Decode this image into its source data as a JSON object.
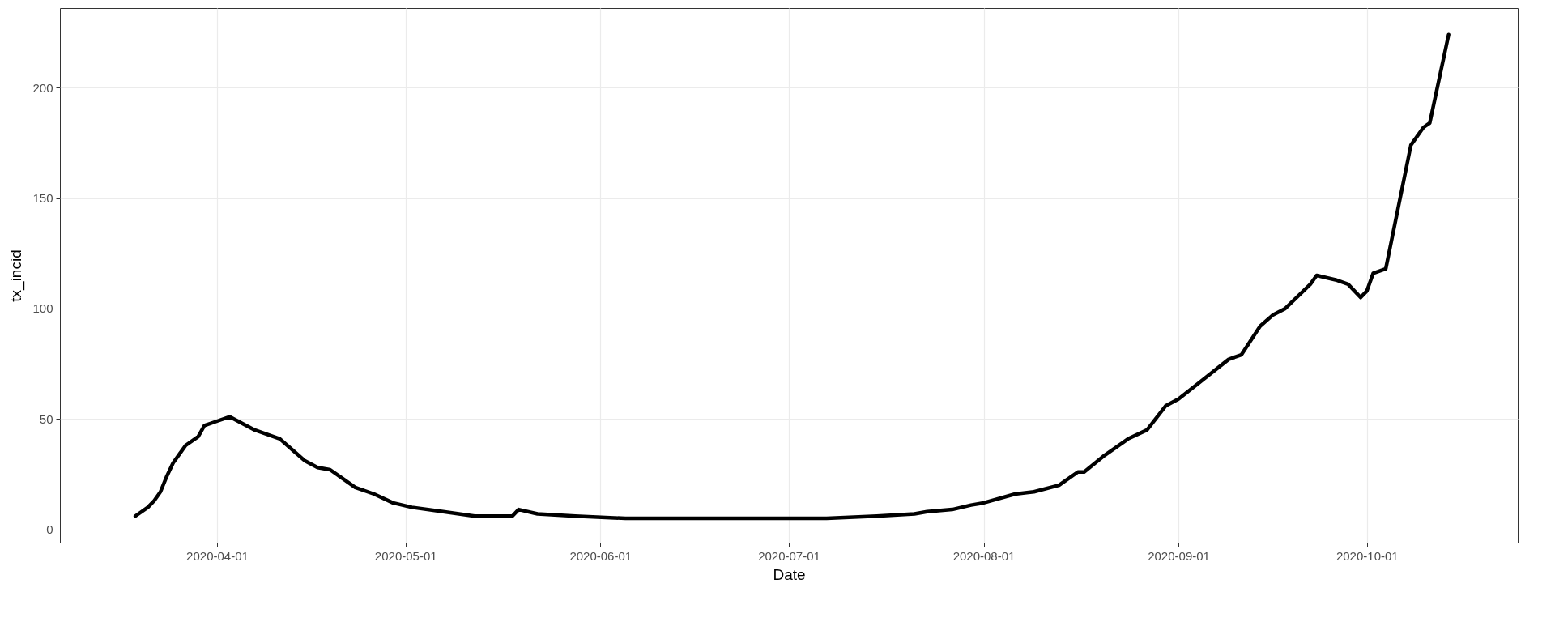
{
  "chart_data": {
    "type": "line",
    "xlabel": "Date",
    "ylabel": "tx_incid",
    "x": [
      "2020-03-19",
      "2020-03-21",
      "2020-03-22",
      "2020-03-23",
      "2020-03-24",
      "2020-03-25",
      "2020-03-26",
      "2020-03-27",
      "2020-03-29",
      "2020-03-30",
      "2020-04-01",
      "2020-04-03",
      "2020-04-05",
      "2020-04-07",
      "2020-04-09",
      "2020-04-11",
      "2020-04-13",
      "2020-04-15",
      "2020-04-17",
      "2020-04-19",
      "2020-04-21",
      "2020-04-23",
      "2020-04-26",
      "2020-04-29",
      "2020-05-02",
      "2020-05-07",
      "2020-05-12",
      "2020-05-18",
      "2020-05-19",
      "2020-05-22",
      "2020-05-28",
      "2020-06-05",
      "2020-06-13",
      "2020-06-21",
      "2020-06-29",
      "2020-07-07",
      "2020-07-15",
      "2020-07-21",
      "2020-07-23",
      "2020-07-27",
      "2020-07-30",
      "2020-08-01",
      "2020-08-06",
      "2020-08-09",
      "2020-08-13",
      "2020-08-14",
      "2020-08-16",
      "2020-08-17",
      "2020-08-20",
      "2020-08-24",
      "2020-08-27",
      "2020-08-30",
      "2020-09-01",
      "2020-09-05",
      "2020-09-09",
      "2020-09-11",
      "2020-09-14",
      "2020-09-16",
      "2020-09-18",
      "2020-09-22",
      "2020-09-23",
      "2020-09-26",
      "2020-09-28",
      "2020-09-30",
      "2020-10-01",
      "2020-10-02",
      "2020-10-04",
      "2020-10-08",
      "2020-10-10",
      "2020-10-11",
      "2020-10-14"
    ],
    "series": [
      {
        "color": "#000000",
        "values": [
          6,
          10,
          13,
          17,
          24,
          30,
          34,
          38,
          42,
          47,
          49,
          51,
          48,
          45,
          43,
          41,
          36,
          31,
          28,
          27,
          23,
          19,
          16,
          12,
          10,
          8,
          6,
          6,
          9,
          7,
          6,
          5,
          5,
          5,
          5,
          5,
          6,
          7,
          8,
          9,
          11,
          12,
          16,
          17,
          20,
          22,
          26,
          26,
          33,
          41,
          45,
          56,
          59,
          68,
          77,
          79,
          92,
          97,
          100,
          111,
          115,
          113,
          111,
          105,
          108,
          116,
          118,
          174,
          182,
          184,
          224
        ]
      }
    ],
    "xlim": [
      "2020-03-07",
      "2020-10-25"
    ],
    "ylim": [
      -6,
      236
    ],
    "xticks": [
      "2020-04-01",
      "2020-05-01",
      "2020-06-01",
      "2020-07-01",
      "2020-08-01",
      "2020-09-01",
      "2020-10-01"
    ],
    "yticks": [
      0,
      50,
      100,
      150,
      200
    ],
    "grid": true,
    "line_style": "solid",
    "marker": "none"
  }
}
